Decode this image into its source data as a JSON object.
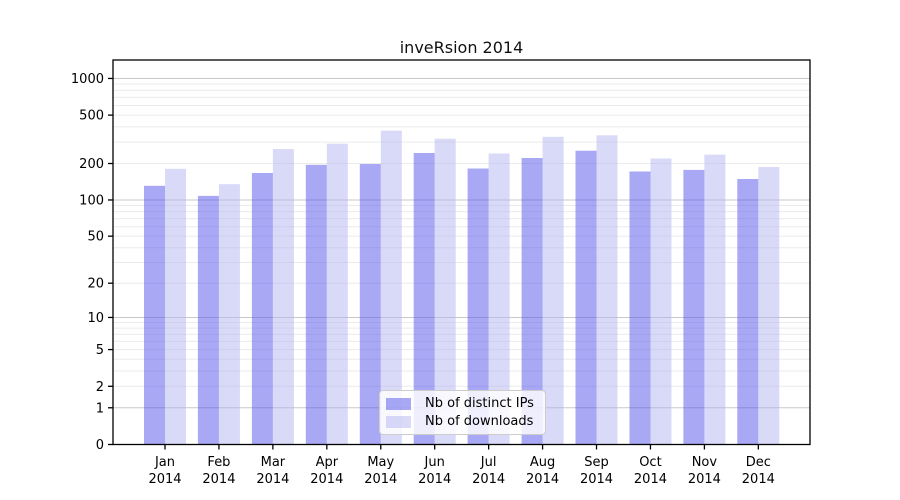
{
  "figure": {
    "background": "#ffffff",
    "frame_color": "#000000",
    "text_color": "#000000"
  },
  "chart_data": {
    "type": "bar",
    "title": "inveRsion 2014",
    "categories": [
      "Jan 2014",
      "Feb 2014",
      "Mar 2014",
      "Apr 2014",
      "May 2014",
      "Jun 2014",
      "Jul 2014",
      "Aug 2014",
      "Sep 2014",
      "Oct 2014",
      "Nov 2014",
      "Dec 2014"
    ],
    "x": {
      "months": [
        "Jan",
        "Feb",
        "Mar",
        "Apr",
        "May",
        "Jun",
        "Jul",
        "Aug",
        "Sep",
        "Oct",
        "Nov",
        "Dec"
      ],
      "year": "2014"
    },
    "series": [
      {
        "name": "Nb of distinct IPs",
        "color": "#5151EB",
        "alpha": 0.5,
        "values": [
          131,
          108,
          167,
          195,
          198,
          244,
          182,
          222,
          255,
          172,
          177,
          149
        ]
      },
      {
        "name": "Nb of downloads",
        "color": "#B4B4F2",
        "alpha": 0.5,
        "values": [
          181,
          135,
          263,
          291,
          373,
          320,
          242,
          332,
          341,
          220,
          237,
          187
        ]
      }
    ],
    "y_axis": {
      "scale": "log1p",
      "tick_values": [
        0,
        1,
        2,
        5,
        10,
        20,
        50,
        100,
        200,
        500,
        1000
      ],
      "max": 1200
    },
    "grid": {
      "major_at": [
        1,
        10,
        100,
        1000
      ],
      "minor_per_decade": [
        2,
        3,
        4,
        5,
        6,
        7,
        8,
        9
      ],
      "major_color": "#c8c8c8",
      "minor_color": "#ebebeb"
    },
    "legend_position": "inside-bottom-center"
  }
}
